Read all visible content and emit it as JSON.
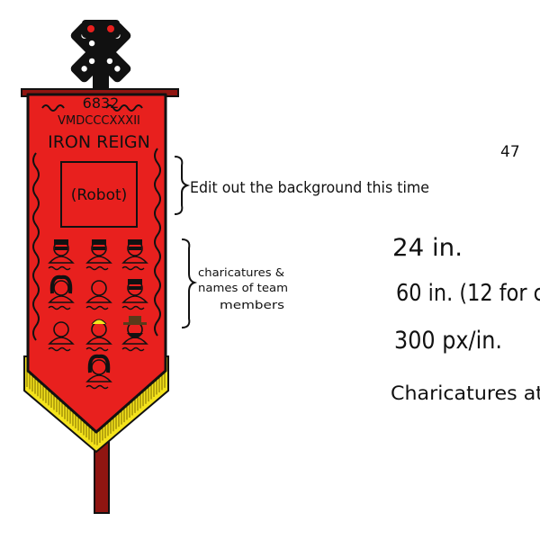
{
  "banner": {
    "number": "6832",
    "roman": "VMDCCCXXXII",
    "team_name": "IRON REIGN",
    "robot_placeholder": "(Robot)",
    "colors": {
      "cloth": "#e8201e",
      "fringe": "#f4e31c",
      "pole": "#8f1511",
      "ink": "#111111"
    },
    "finial_icon": "gear-cross-finial",
    "member_count": 10
  },
  "annotations": {
    "robot_note": "Edit out the background this time",
    "members_note_line1": "charicatures &",
    "members_note_line2": "names of team",
    "members_note_line3": "members"
  },
  "notes": {
    "page_number": "47",
    "width": "24 in.",
    "length": "60 in. (12 for c",
    "resolution": "300 px/in.",
    "caricatures": "Charicatures at"
  }
}
